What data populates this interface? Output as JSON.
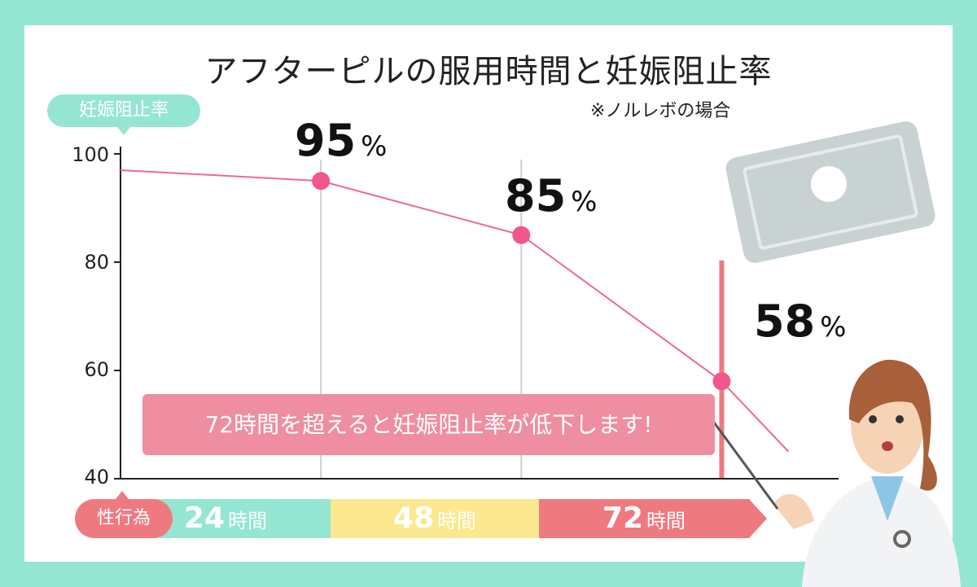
{
  "title": "アフターピルの服用時間と妊娠阻止率",
  "note": "※ノルレボの場合",
  "y_label": "妊娠阻止率",
  "x_label": "性行為",
  "callout": "72時間を超えると妊娠阻止率が低下します!",
  "percent_sign": "%",
  "hour_unit": "時間",
  "colors": {
    "background": "#94e6d2",
    "line": "#ee6b8a",
    "point": "#f0578a",
    "seg24": "#94e6d2",
    "seg48": "#fbe88f",
    "seg72": "#ee7a80",
    "callout": "#ee8ea0"
  },
  "chart_data": {
    "type": "line",
    "title": "アフターピルの服用時間と妊娠阻止率",
    "ylabel": "妊娠阻止率",
    "xlabel": "性行為",
    "ylim": [
      40,
      100
    ],
    "xlim": [
      0,
      86
    ],
    "y_ticks": [
      100,
      80,
      60,
      40
    ],
    "x_tick_labels": [
      "24",
      "48",
      "72"
    ],
    "x_ticks": [
      24,
      48,
      72
    ],
    "grid": "vertical",
    "series": [
      {
        "x": [
          0,
          24,
          48,
          72,
          80
        ],
        "y": [
          97,
          95,
          85,
          58,
          45
        ]
      }
    ],
    "labeled_points": [
      {
        "x": 24,
        "y": 95,
        "label": "95"
      },
      {
        "x": 48,
        "y": 85,
        "label": "85"
      },
      {
        "x": 72,
        "y": 58,
        "label": "58"
      }
    ]
  }
}
